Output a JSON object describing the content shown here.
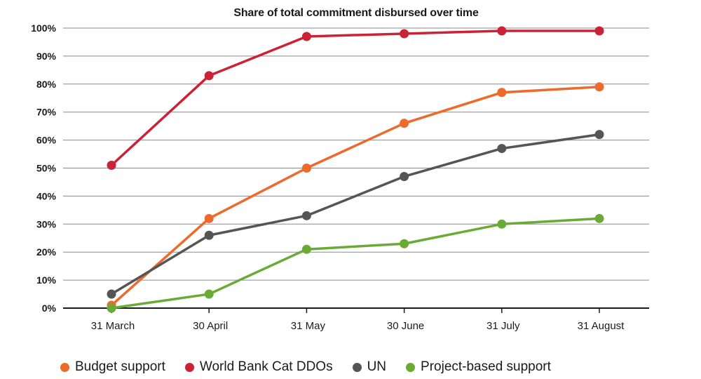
{
  "chart_data": {
    "type": "line",
    "title": "Share of total commitment disbursed over time",
    "x": [
      "31 March",
      "30 April",
      "31 May",
      "30 June",
      "31 July",
      "31 August"
    ],
    "y_ticks": [
      "0%",
      "10%",
      "20%",
      "30%",
      "40%",
      "50%",
      "60%",
      "70%",
      "80%",
      "90%",
      "100%"
    ],
    "ylim": [
      0,
      100
    ],
    "grid": true,
    "legend_position": "bottom",
    "series": [
      {
        "name": "Budget support",
        "color": "#ee6a2a",
        "values": [
          1,
          32,
          50,
          66,
          77,
          79
        ]
      },
      {
        "name": "World Bank Cat DDOs",
        "color": "#cc2236",
        "values": [
          51,
          83,
          97,
          98,
          99,
          99
        ]
      },
      {
        "name": "UN",
        "color": "#555555",
        "values": [
          5,
          26,
          33,
          47,
          57,
          62
        ]
      },
      {
        "name": "Project-based support",
        "color": "#6aab35",
        "values": [
          0,
          5,
          21,
          23,
          30,
          32
        ]
      }
    ]
  }
}
